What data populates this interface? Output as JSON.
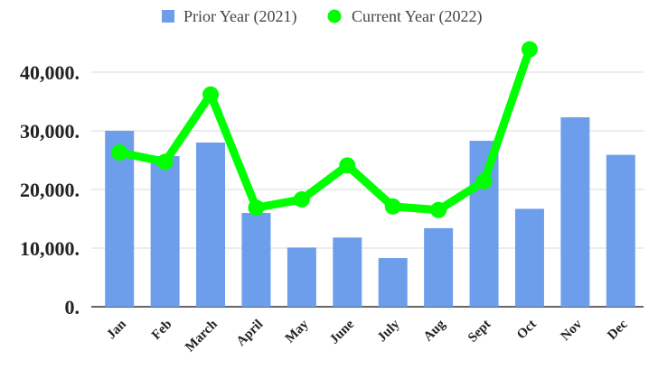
{
  "chart_data": {
    "type": "bar",
    "categories": [
      "Jan",
      "Feb",
      "March",
      "April",
      "May",
      "June",
      "July",
      "Aug",
      "Sept",
      "Oct",
      "Nov",
      "Dec"
    ],
    "series": [
      {
        "name": "Prior Year (2021)",
        "type": "bar",
        "color": "#6d9eeb",
        "values": [
          30000,
          25700,
          28000,
          16000,
          10100,
          11800,
          8300,
          13400,
          28300,
          16700,
          32300,
          25900
        ]
      },
      {
        "name": "Current Year (2022)",
        "type": "line",
        "color": "#00ff00",
        "values": [
          26300,
          24700,
          36200,
          16900,
          18300,
          24100,
          17100,
          16500,
          21400,
          43900,
          null,
          null
        ]
      }
    ],
    "ylim": [
      0,
      44000
    ],
    "yticks": [
      {
        "value": 0,
        "label": "0."
      },
      {
        "value": 10000,
        "label": "10,000."
      },
      {
        "value": 20000,
        "label": "20,000."
      },
      {
        "value": 30000,
        "label": "30,000."
      },
      {
        "value": 40000,
        "label": "40,000."
      }
    ],
    "legend": "top",
    "grid": true
  }
}
